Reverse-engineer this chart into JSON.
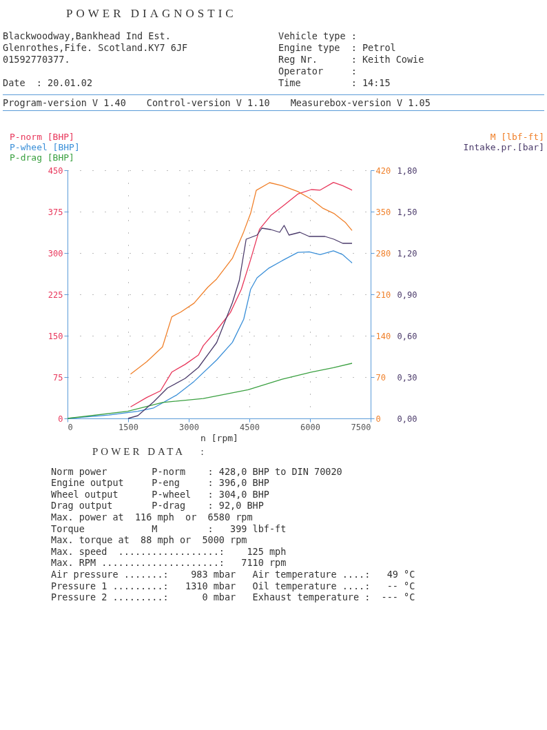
{
  "chart_data": {
    "type": "line",
    "title": "POWER DIAGNOSTIC",
    "xlabel": "n [rpm]",
    "xlim": [
      0,
      7500
    ],
    "xticks": [
      0,
      1500,
      3000,
      4500,
      6000,
      7500
    ],
    "ylim": [
      0,
      450
    ],
    "yticks": [
      0,
      75,
      150,
      225,
      300,
      375,
      450
    ],
    "y2lim": [
      0,
      420
    ],
    "y2ticks": [
      0,
      70,
      140,
      210,
      280,
      350,
      420
    ],
    "y3lim": [
      0,
      1.8
    ],
    "y3ticks": [
      {
        "value": 0,
        "label": "0,00"
      },
      {
        "value": 0.3,
        "label": "0,30"
      },
      {
        "value": 0.6,
        "label": "0,60"
      },
      {
        "value": 0.9,
        "label": "0,90"
      },
      {
        "value": 1.2,
        "label": "1,20"
      },
      {
        "value": 1.5,
        "label": "1,50"
      },
      {
        "value": 1.8,
        "label": "1,80"
      }
    ],
    "grid": true,
    "legend": "top",
    "series": [
      {
        "name": "P-norm [BHP]",
        "color": "#e8365a",
        "x": [
          1560,
          1960,
          2300,
          2580,
          2910,
          3240,
          3360,
          3690,
          4030,
          4300,
          4530,
          4750,
          5030,
          5360,
          5700,
          6030,
          6250,
          6580,
          6810,
          7040
        ],
        "values": [
          21,
          38,
          50,
          84,
          98,
          115,
          132,
          160,
          192,
          234,
          288,
          343,
          368,
          387,
          407,
          415,
          414,
          428,
          422,
          414
        ]
      },
      {
        "name": "P-wheel [BHP]",
        "color": "#3a8fd8",
        "x": [
          0,
          1020,
          1740,
          2130,
          2690,
          3130,
          3690,
          4080,
          4360,
          4530,
          4690,
          4970,
          5310,
          5700,
          5980,
          6250,
          6580,
          6810,
          7040
        ],
        "values": [
          0,
          6,
          13,
          19,
          42,
          67,
          106,
          138,
          180,
          234,
          255,
          272,
          286,
          301,
          302,
          297,
          304,
          297,
          282
        ]
      },
      {
        "name": "P-drag [BHP]",
        "color": "#3aa040",
        "x": [
          0,
          1490,
          2350,
          3360,
          4470,
          5310,
          6030,
          6580,
          7040
        ],
        "values": [
          0,
          13,
          29,
          36,
          52,
          71,
          84,
          92,
          100
        ]
      },
      {
        "name": "M [lbf-ft]",
        "color": "#f0802a",
        "axis": "y2",
        "x": [
          1560,
          1960,
          2350,
          2580,
          2800,
          3130,
          3470,
          3690,
          4080,
          4360,
          4530,
          4670,
          5000,
          5310,
          5700,
          6030,
          6310,
          6590,
          6870,
          7040
        ],
        "values": [
          75,
          96,
          121,
          172,
          180,
          195,
          222,
          236,
          271,
          316,
          347,
          386,
          399,
          394,
          384,
          371,
          356,
          347,
          332,
          318
        ]
      },
      {
        "name": "Intake.pr.[bar]",
        "color": "#4a3a6a",
        "axis": "y3",
        "x": [
          1500,
          1740,
          2130,
          2470,
          2910,
          3240,
          3690,
          4080,
          4250,
          4420,
          4690,
          4810,
          5030,
          5250,
          5360,
          5480,
          5750,
          5980,
          6370,
          6590,
          6810,
          7040
        ],
        "values": [
          0,
          0.02,
          0.12,
          0.22,
          0.29,
          0.37,
          0.55,
          0.84,
          1.0,
          1.3,
          1.33,
          1.38,
          1.37,
          1.35,
          1.4,
          1.33,
          1.35,
          1.32,
          1.32,
          1.3,
          1.27,
          1.27
        ]
      }
    ],
    "annotations": [
      "Blackwoodway,Bankhead Ind Est.",
      "Glenrothes,Fife. Scotland.KY7 6JF",
      "01592770377.",
      "Date  : 20.01.02",
      "Vehicle type :",
      "Engine type  : Petrol",
      "Reg Nr.      : Keith Cowie",
      "Operator     :",
      "Time         : 14:15",
      "Program-version V 1.40",
      "Control-version V 1.10",
      "Measurebox-version V 1.05",
      "POWER DATA   :",
      "Norm power        P-norm    : 428,0 BHP to DIN 70020",
      "Engine output     P-eng     : 396,0 BHP",
      "Wheel output      P-wheel   : 304,0 BHP",
      "Drag output       P-drag    : 92,0 BHP",
      "Max. power at  116 mph  or  6580 rpm",
      "Torque            M         :   399 lbf-ft",
      "Max. torque at  88 mph or  5000 rpm",
      "Max. speed  ..................:    125 mph",
      "Max. RPM .....................:   7110 rpm",
      "Air pressure .......:    983 mbar   Air temperature ....:   49 °C",
      "Pressure 1 .........:   1310 mbar   Oil temperature ....:   -- °C",
      "Pressure 2 .........:      0 mbar   Exhaust temperature :  --- °C"
    ]
  }
}
